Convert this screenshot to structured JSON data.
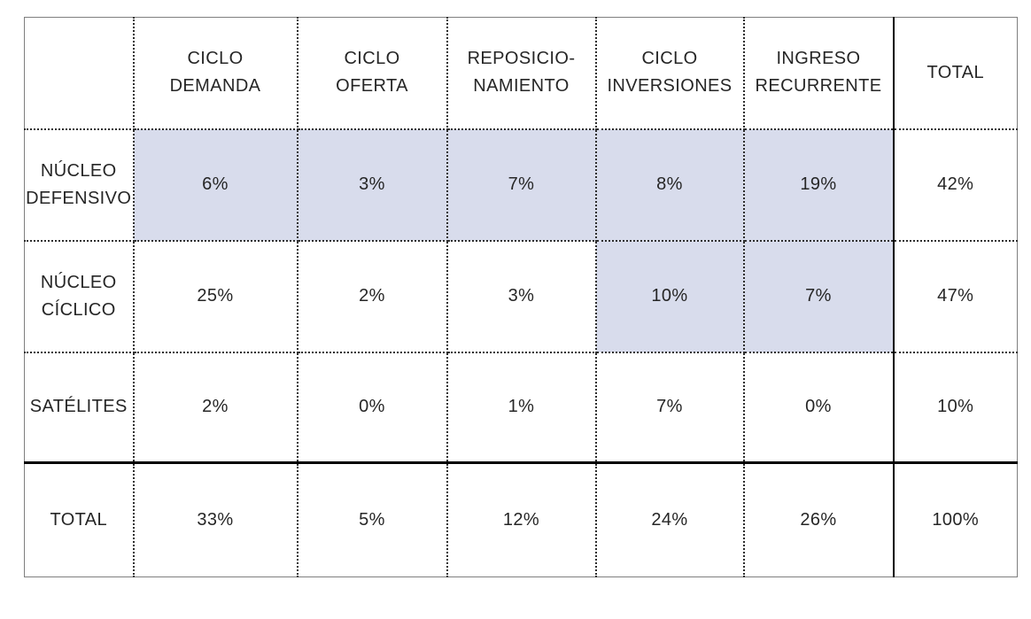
{
  "colors": {
    "highlight_fill": "#d8dcec",
    "text": "#262626",
    "bold_text": "#141414",
    "dotted_grid": "#2e2e2e",
    "outer_border": "#7f7f7f",
    "strong_line": "#000000",
    "background": "#ffffff"
  },
  "table": {
    "corner_label": "",
    "column_headers": [
      {
        "label": "CICLO\nDEMANDA",
        "bold": false
      },
      {
        "label": "CICLO\nOFERTA",
        "bold": false
      },
      {
        "label": "REPOSICIO-\nNAMIENTO",
        "bold": false
      },
      {
        "label": "CICLO\nINVERSIONES",
        "bold": true
      },
      {
        "label": "INGRESO\nRECURRENTE",
        "bold": true
      },
      {
        "label": "TOTAL",
        "bold": false
      }
    ],
    "rows": [
      {
        "label": "NÚCLEO\nDEFENSIVO",
        "label_bold": true,
        "cells": [
          {
            "value": "6%",
            "bold": true,
            "highlighted": true
          },
          {
            "value": "3%",
            "bold": true,
            "highlighted": true
          },
          {
            "value": "7%",
            "bold": true,
            "highlighted": true
          },
          {
            "value": "8%",
            "bold": true,
            "highlighted": true
          },
          {
            "value": "19%",
            "bold": true,
            "highlighted": true
          },
          {
            "value": "42%",
            "bold": false,
            "highlighted": false
          }
        ]
      },
      {
        "label": "NÚCLEO\nCÍCLICO",
        "label_bold": false,
        "cells": [
          {
            "value": "25%",
            "bold": false,
            "highlighted": false
          },
          {
            "value": "2%",
            "bold": false,
            "highlighted": false
          },
          {
            "value": "3%",
            "bold": false,
            "highlighted": false
          },
          {
            "value": "10%",
            "bold": true,
            "highlighted": true
          },
          {
            "value": "7%",
            "bold": true,
            "highlighted": true
          },
          {
            "value": "47%",
            "bold": false,
            "highlighted": false
          }
        ]
      },
      {
        "label": "SATÉLITES",
        "label_bold": false,
        "cells": [
          {
            "value": "2%",
            "bold": false,
            "highlighted": false
          },
          {
            "value": "0%",
            "bold": false,
            "highlighted": false
          },
          {
            "value": "1%",
            "bold": false,
            "highlighted": false
          },
          {
            "value": "7%",
            "bold": false,
            "highlighted": false
          },
          {
            "value": "0%",
            "bold": false,
            "highlighted": false
          },
          {
            "value": "10%",
            "bold": false,
            "highlighted": false
          }
        ]
      },
      {
        "label": "TOTAL",
        "label_bold": false,
        "cells": [
          {
            "value": "33%",
            "bold": false,
            "highlighted": false
          },
          {
            "value": "5%",
            "bold": false,
            "highlighted": false
          },
          {
            "value": "12%",
            "bold": false,
            "highlighted": false
          },
          {
            "value": "24%",
            "bold": false,
            "highlighted": false
          },
          {
            "value": "26%",
            "bold": false,
            "highlighted": false
          },
          {
            "value": "100%",
            "bold": false,
            "highlighted": false
          }
        ]
      }
    ]
  },
  "chart_data": {
    "type": "table",
    "title": "",
    "columns": [
      "CICLO DEMANDA",
      "CICLO OFERTA",
      "REPOSICIONAMIENTO",
      "CICLO INVERSIONES",
      "INGRESO RECURRENTE",
      "TOTAL"
    ],
    "rows": [
      "NÚCLEO DEFENSIVO",
      "NÚCLEO CÍCLICO",
      "SATÉLITES",
      "TOTAL"
    ],
    "values_pct": [
      [
        6,
        3,
        7,
        8,
        19,
        42
      ],
      [
        25,
        2,
        3,
        10,
        7,
        47
      ],
      [
        2,
        0,
        1,
        7,
        0,
        10
      ],
      [
        33,
        5,
        12,
        24,
        26,
        100
      ]
    ],
    "highlighted_cells_row_col": [
      [
        0,
        0
      ],
      [
        0,
        1
      ],
      [
        0,
        2
      ],
      [
        0,
        3
      ],
      [
        0,
        4
      ],
      [
        1,
        3
      ],
      [
        1,
        4
      ]
    ],
    "notes": "highlighted cells are bold on lavender fill; column and row totals separated by solid black rules"
  }
}
